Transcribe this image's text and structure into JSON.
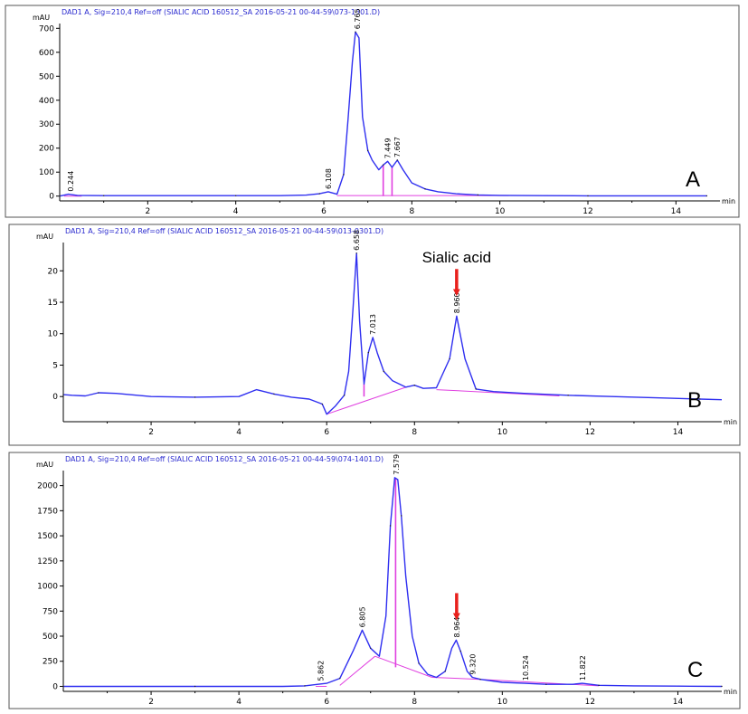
{
  "colors": {
    "trace": "#2f2ff0",
    "baseline": "#e040e0",
    "arrow": "#e8201c",
    "header": "#2a2acf"
  },
  "chart_data": [
    {
      "type": "line",
      "panel_label": "A",
      "header": "DAD1 A, Sig=210,4 Ref=off (SIALIC ACID 160512_SA 2016-05-21 00-44-59\\073-1301.D)",
      "ylabel": "mAU",
      "xlabel": "min",
      "xlim": [
        0,
        15
      ],
      "ylim": [
        -20,
        720
      ],
      "xticks": [
        2,
        4,
        6,
        8,
        10,
        12,
        14
      ],
      "yticks": [
        0,
        100,
        200,
        300,
        400,
        500,
        600,
        700
      ],
      "series": [
        {
          "x": [
            0,
            0.2,
            0.4,
            1,
            2,
            3,
            4,
            5,
            5.6,
            5.9,
            6.1,
            6.3,
            6.45,
            6.55,
            6.65,
            6.72,
            6.8,
            6.88,
            7.0,
            7.1,
            7.25,
            7.35,
            7.45,
            7.55,
            7.67,
            7.8,
            8.0,
            8.3,
            8.6,
            9.0,
            9.5,
            10,
            11,
            12,
            13,
            14,
            14.7
          ],
          "y": [
            0,
            8,
            3,
            2,
            2,
            2,
            2,
            2,
            4,
            10,
            18,
            8,
            90,
            320,
            560,
            685,
            660,
            330,
            190,
            150,
            110,
            130,
            145,
            120,
            150,
            110,
            55,
            30,
            18,
            10,
            5,
            3,
            2,
            1,
            1,
            1,
            1
          ]
        }
      ],
      "peaks": [
        {
          "rt": "0.244",
          "x": 0.244,
          "y": 8
        },
        {
          "rt": "6.108",
          "x": 6.108,
          "y": 18
        },
        {
          "rt": "6.765",
          "x": 6.765,
          "y": 685
        },
        {
          "rt": "7.449",
          "x": 7.449,
          "y": 145
        },
        {
          "rt": "7.667",
          "x": 7.667,
          "y": 150
        }
      ],
      "baselines": [
        [
          0.1,
          0,
          0.5,
          0
        ],
        [
          6.3,
          2,
          10.2,
          2
        ]
      ],
      "drops": [
        [
          7.35,
          0,
          7.35,
          130
        ],
        [
          7.55,
          0,
          7.55,
          120
        ]
      ],
      "arrow_at": null,
      "annotation": ""
    },
    {
      "type": "line",
      "panel_label": "B",
      "header": "DAD1 A, Sig=210,4 Ref=off (SIALIC ACID 160512_SA 2016-05-21 00-44-59\\013-0301.D)",
      "ylabel": "mAU",
      "xlabel": "min",
      "xlim": [
        0,
        15
      ],
      "ylim": [
        -4,
        24.5
      ],
      "xticks": [
        2,
        4,
        6,
        8,
        10,
        12,
        14
      ],
      "yticks": [
        0,
        5,
        10,
        15,
        20
      ],
      "series": [
        {
          "x": [
            0,
            0.2,
            0.5,
            0.8,
            1.2,
            2,
            3,
            4,
            4.4,
            4.8,
            5.2,
            5.6,
            5.9,
            6.0,
            6.2,
            6.4,
            6.5,
            6.6,
            6.68,
            6.75,
            6.85,
            6.95,
            7.05,
            7.15,
            7.3,
            7.5,
            7.8,
            8.0,
            8.2,
            8.5,
            8.8,
            8.96,
            9.15,
            9.4,
            9.8,
            10.5,
            11.5,
            12.5,
            13.5,
            14.5,
            15
          ],
          "y": [
            0.3,
            0.2,
            0.1,
            0.6,
            0.5,
            0,
            -0.1,
            0,
            1.1,
            0.4,
            -0.1,
            -0.4,
            -1.2,
            -2.8,
            -1.5,
            0.2,
            4,
            14,
            22.8,
            12,
            2,
            7,
            9.4,
            7,
            4,
            2.5,
            1.5,
            1.8,
            1.3,
            1.4,
            6,
            12.8,
            6,
            1.2,
            0.8,
            0.5,
            0.2,
            0,
            -0.2,
            -0.4,
            -0.5
          ]
        }
      ],
      "peaks": [
        {
          "rt": "6.658",
          "x": 6.68,
          "y": 22.8
        },
        {
          "rt": "7.013",
          "x": 7.05,
          "y": 9.4
        },
        {
          "rt": "8.960",
          "x": 8.96,
          "y": 12.8
        }
      ],
      "baselines": [
        [
          6.0,
          -2.8,
          7.85,
          1.6
        ],
        [
          8.5,
          1.1,
          11.3,
          0.1
        ]
      ],
      "drops": [
        [
          6.85,
          0,
          6.85,
          2
        ]
      ],
      "arrow_at": 8.96,
      "annotation": "Sialic acid"
    },
    {
      "type": "line",
      "panel_label": "C",
      "header": "DAD1 A, Sig=210,4 Ref=off (SIALIC ACID 160512_SA 2016-05-21 00-44-59\\074-1401.D)",
      "ylabel": "mAU",
      "xlabel": "min",
      "xlim": [
        0,
        15
      ],
      "ylim": [
        -50,
        2150
      ],
      "xticks": [
        2,
        4,
        6,
        8,
        10,
        12,
        14
      ],
      "yticks": [
        0,
        250,
        500,
        750,
        1000,
        1250,
        1500,
        1750,
        2000
      ],
      "series": [
        {
          "x": [
            0,
            1,
            2,
            3,
            4,
            5,
            5.5,
            5.8,
            6.0,
            6.3,
            6.6,
            6.81,
            7.0,
            7.2,
            7.35,
            7.45,
            7.55,
            7.62,
            7.7,
            7.8,
            7.95,
            8.1,
            8.3,
            8.5,
            8.7,
            8.85,
            8.95,
            9.05,
            9.2,
            9.32,
            9.5,
            10,
            10.5,
            11,
            11.6,
            11.82,
            12.2,
            13,
            14,
            15
          ],
          "y": [
            0,
            0,
            0,
            0,
            0,
            0,
            5,
            20,
            30,
            80,
            350,
            560,
            380,
            300,
            700,
            1600,
            2080,
            2060,
            1700,
            1100,
            500,
            230,
            120,
            90,
            150,
            380,
            460,
            350,
            150,
            90,
            70,
            40,
            30,
            20,
            20,
            30,
            10,
            5,
            2,
            0
          ]
        }
      ],
      "peaks": [
        {
          "rt": "5.862",
          "x": 5.862,
          "y": 25
        },
        {
          "rt": "6.805",
          "x": 6.805,
          "y": 560
        },
        {
          "rt": "7.579",
          "x": 7.579,
          "y": 2080
        },
        {
          "rt": "8.964",
          "x": 8.964,
          "y": 460
        },
        {
          "rt": "9.320",
          "x": 9.32,
          "y": 90
        },
        {
          "rt": "10.524",
          "x": 10.524,
          "y": 30
        },
        {
          "rt": "11.822",
          "x": 11.822,
          "y": 30
        }
      ],
      "baselines": [
        [
          5.75,
          0,
          6.0,
          0
        ],
        [
          6.3,
          10,
          7.1,
          300
        ],
        [
          7.1,
          300,
          8.4,
          90
        ],
        [
          8.4,
          90,
          9.5,
          70
        ],
        [
          9.5,
          70,
          12.2,
          5
        ]
      ],
      "drops": [
        [
          7.57,
          190,
          7.57,
          2070
        ]
      ],
      "arrow_at": 8.96,
      "annotation": ""
    }
  ]
}
